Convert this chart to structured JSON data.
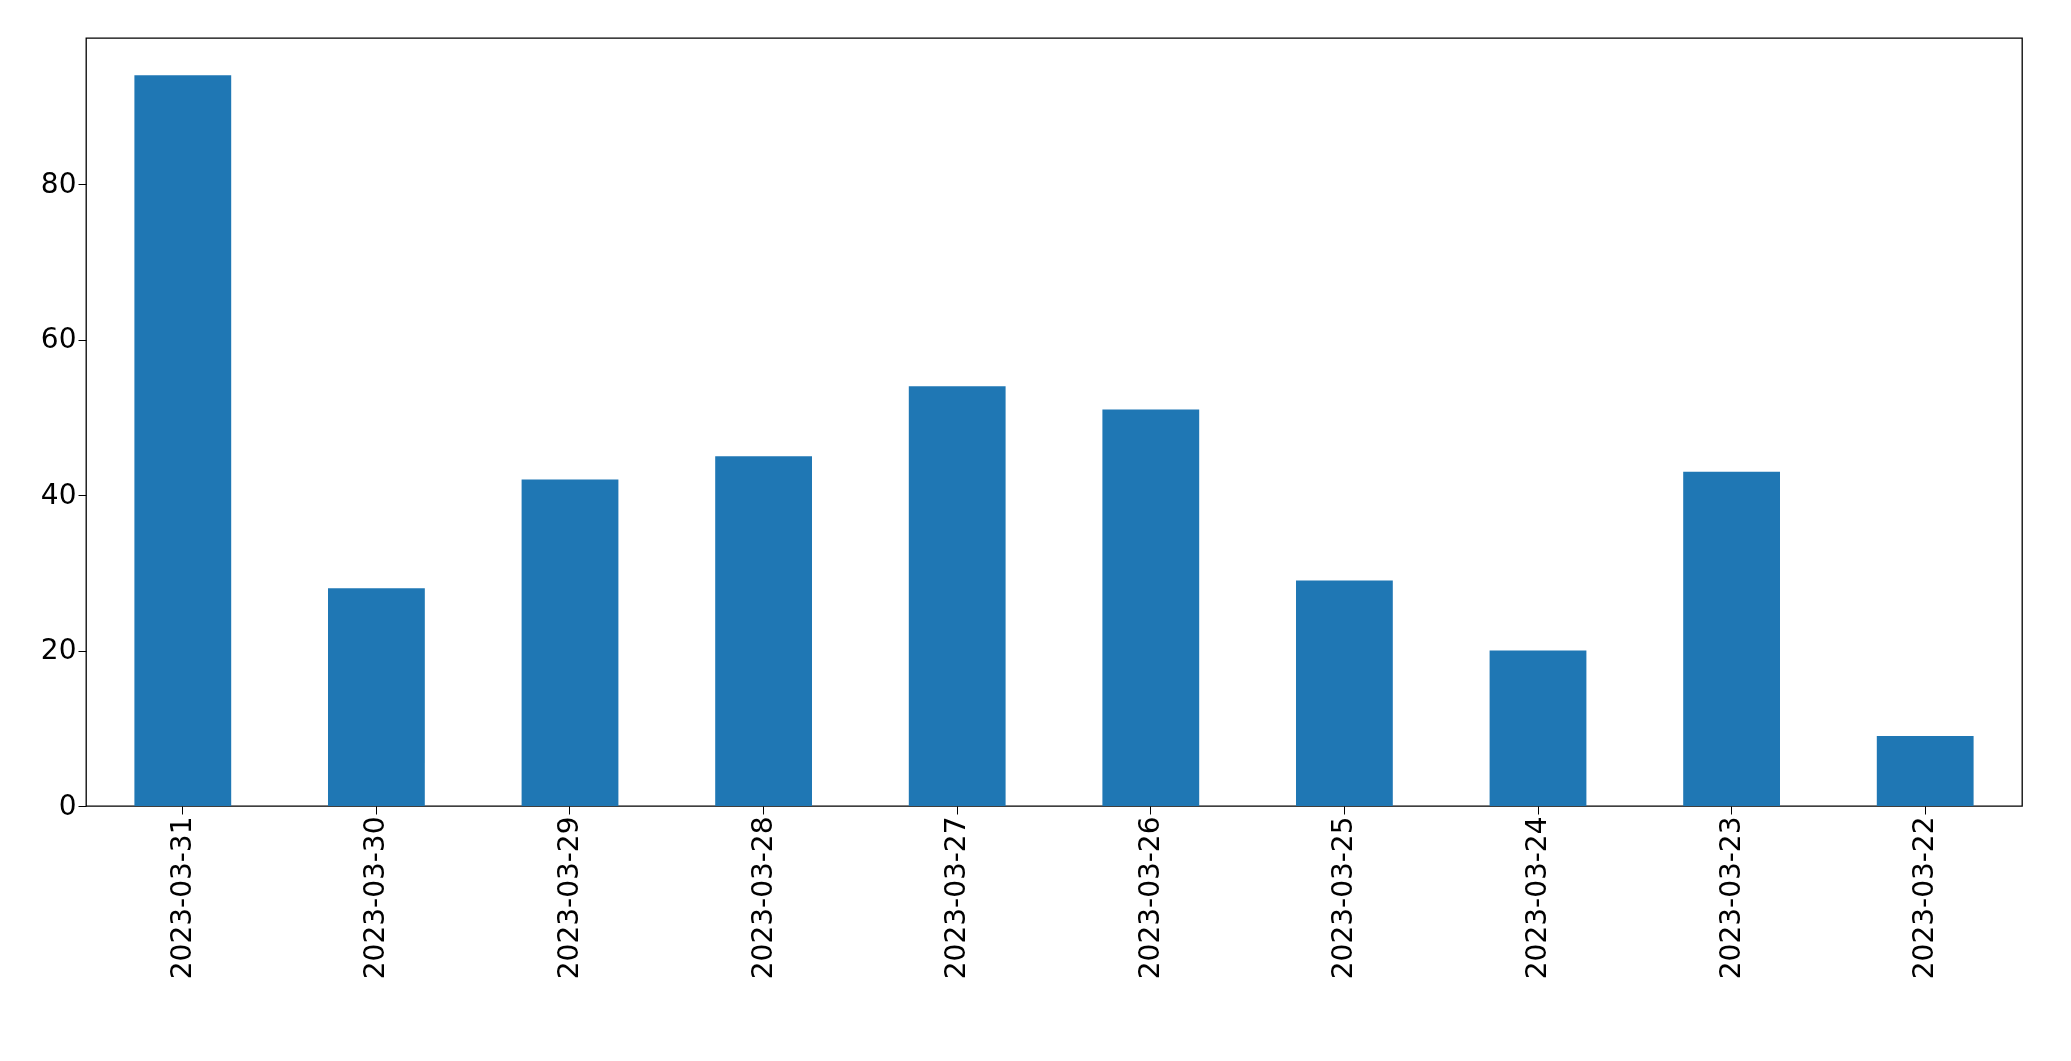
{
  "chart_data": {
    "type": "bar",
    "categories": [
      "2023-03-31",
      "2023-03-30",
      "2023-03-29",
      "2023-03-28",
      "2023-03-27",
      "2023-03-26",
      "2023-03-25",
      "2023-03-24",
      "2023-03-23",
      "2023-03-22"
    ],
    "values": [
      94,
      28,
      42,
      45,
      54,
      51,
      29,
      20,
      43,
      9
    ],
    "color": "#1f77b4",
    "ylim": [
      0,
      98.8
    ],
    "yticks": [
      0,
      20,
      40,
      60,
      80
    ],
    "grid": false
  }
}
